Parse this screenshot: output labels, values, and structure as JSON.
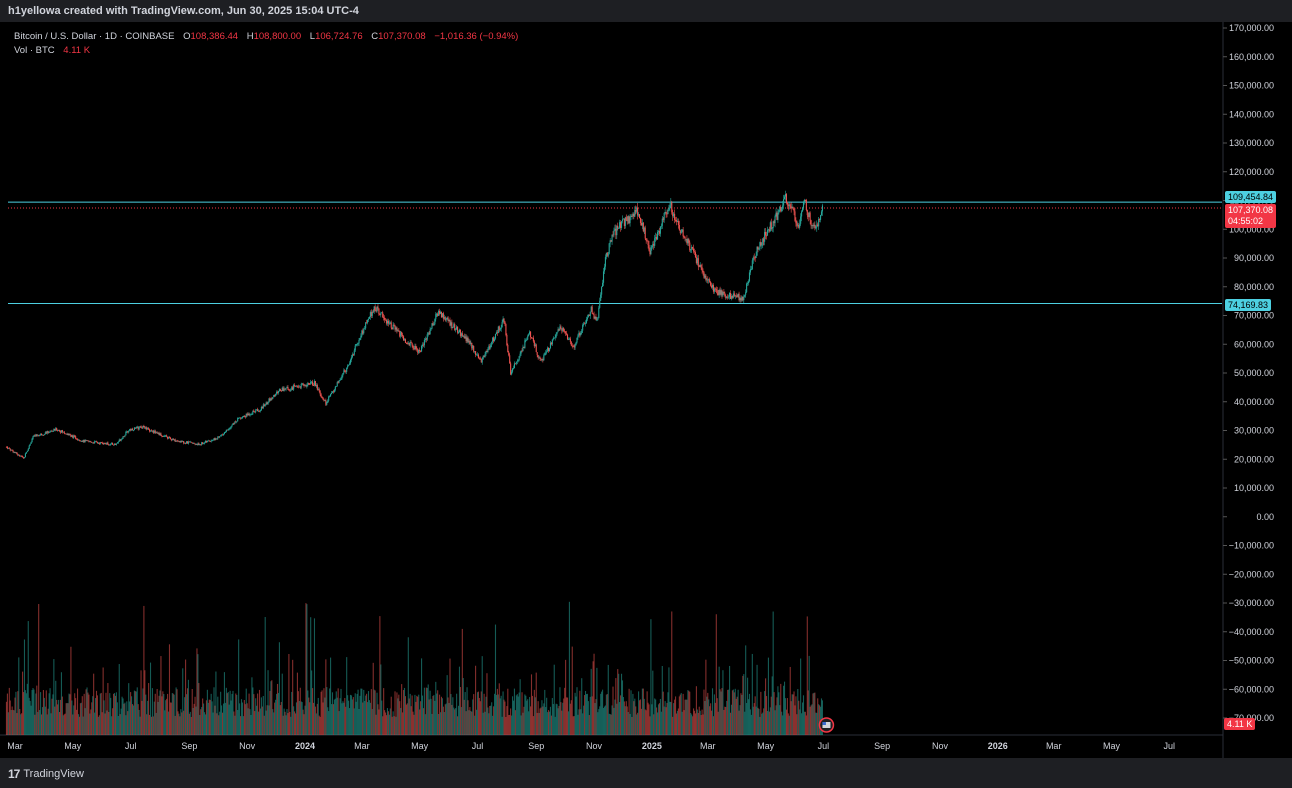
{
  "header": {
    "credit": "h1yellowa created with TradingView.com, Jun 30, 2025 15:04 UTC-4"
  },
  "legend": {
    "symbol": "Bitcoin / U.S. Dollar · 1D · COINBASE",
    "open_label": "O",
    "open": "108,386.44",
    "high_label": "H",
    "high": "108,800.00",
    "low_label": "L",
    "low": "106,724.76",
    "close_label": "C",
    "close": "107,370.08",
    "change": "−1,016.36 (−0.94%)",
    "vol_label": "Vol · BTC",
    "vol": "4.11 K"
  },
  "price_tags": {
    "resistance": "109,454.84",
    "last_price": "107,370.08",
    "countdown": "04:55:02",
    "support": "74,169.83",
    "volume": "4.11 K"
  },
  "footer": {
    "logo": "17",
    "brand": "TradingView"
  },
  "colors": {
    "up": "#26a69a",
    "down": "#ef5350",
    "line": "#4dd0e1",
    "last": "#f23645",
    "bg": "#000000"
  },
  "chart_data": {
    "type": "candlestick",
    "symbol": "Bitcoin / U.S. Dollar",
    "interval": "1D",
    "exchange": "COINBASE",
    "y_axis_ticks": [
      "170,000.00",
      "160,000.00",
      "150,000.00",
      "140,000.00",
      "130,000.00",
      "120,000.00",
      "110,000.00",
      "100,000.00",
      "90,000.00",
      "80,000.00",
      "70,000.00",
      "60,000.00",
      "50,000.00",
      "40,000.00",
      "30,000.00",
      "20,000.00",
      "10,000.00",
      "0.00",
      "−10,000.00",
      "−20,000.00",
      "−30,000.00",
      "−40,000.00",
      "−50,000.00",
      "−60,000.00",
      "−70,000.00"
    ],
    "ylim": [
      -72000,
      172000
    ],
    "x_axis_ticks": [
      "Mar",
      "May",
      "Jul",
      "Sep",
      "Nov",
      "2024",
      "Mar",
      "May",
      "Jul",
      "Sep",
      "Nov",
      "2025",
      "Mar",
      "May",
      "Jul",
      "Sep",
      "Nov",
      "2026",
      "Mar",
      "May",
      "Jul"
    ],
    "x_axis_dates": [
      "2023-03-01",
      "2023-05-01",
      "2023-07-01",
      "2023-09-01",
      "2023-11-01",
      "2024-01-01",
      "2024-03-01",
      "2024-05-01",
      "2024-07-01",
      "2024-09-01",
      "2024-11-01",
      "2025-01-01",
      "2025-03-01",
      "2025-05-01",
      "2025-07-01",
      "2025-09-01",
      "2025-11-01",
      "2026-01-01",
      "2026-03-01",
      "2026-05-01",
      "2026-07-01"
    ],
    "horizontal_lines": [
      {
        "name": "resistance",
        "price": 109454.84
      },
      {
        "name": "support",
        "price": 74169.83
      }
    ],
    "last_price": 107370.08,
    "price_path": [
      [
        "2023-02-20",
        24300
      ],
      [
        "2023-03-10",
        20200
      ],
      [
        "2023-03-20",
        27800
      ],
      [
        "2023-04-14",
        30400
      ],
      [
        "2023-05-12",
        26300
      ],
      [
        "2023-06-15",
        25100
      ],
      [
        "2023-06-30",
        30400
      ],
      [
        "2023-07-14",
        31200
      ],
      [
        "2023-08-17",
        26400
      ],
      [
        "2023-09-11",
        25200
      ],
      [
        "2023-10-02",
        27500
      ],
      [
        "2023-10-24",
        34400
      ],
      [
        "2023-11-15",
        37500
      ],
      [
        "2023-12-05",
        44000
      ],
      [
        "2024-01-11",
        46500
      ],
      [
        "2024-01-23",
        39500
      ],
      [
        "2024-02-14",
        51800
      ],
      [
        "2024-02-28",
        62500
      ],
      [
        "2024-03-14",
        73000
      ],
      [
        "2024-04-17",
        61000
      ],
      [
        "2024-05-01",
        57500
      ],
      [
        "2024-05-21",
        71400
      ],
      [
        "2024-06-24",
        60000
      ],
      [
        "2024-07-05",
        54000
      ],
      [
        "2024-07-29",
        68800
      ],
      [
        "2024-08-05",
        49800
      ],
      [
        "2024-08-25",
        64000
      ],
      [
        "2024-09-06",
        53800
      ],
      [
        "2024-09-27",
        66000
      ],
      [
        "2024-10-10",
        59000
      ],
      [
        "2024-10-29",
        72500
      ],
      [
        "2024-11-04",
        67800
      ],
      [
        "2024-11-13",
        90000
      ],
      [
        "2024-11-22",
        99000
      ],
      [
        "2024-12-17",
        106500
      ],
      [
        "2024-12-30",
        92500
      ],
      [
        "2025-01-20",
        108500
      ],
      [
        "2025-02-03",
        98000
      ],
      [
        "2025-02-26",
        84000
      ],
      [
        "2025-03-10",
        78000
      ],
      [
        "2025-04-07",
        76000
      ],
      [
        "2025-04-22",
        93500
      ],
      [
        "2025-05-10",
        103000
      ],
      [
        "2025-05-22",
        111000
      ],
      [
        "2025-06-05",
        101500
      ],
      [
        "2025-06-10",
        110000
      ],
      [
        "2025-06-22",
        99500
      ],
      [
        "2025-06-30",
        107370
      ]
    ],
    "volume_axis": {
      "max_btc": 100000
    }
  }
}
